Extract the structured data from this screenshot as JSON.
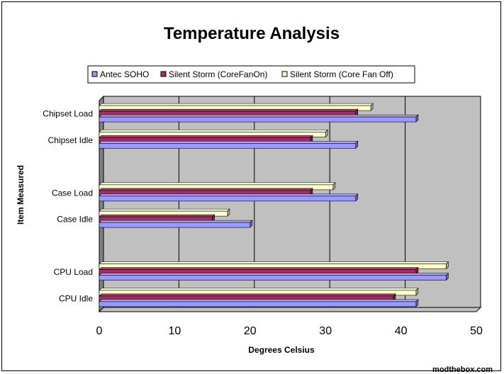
{
  "chart_data": {
    "type": "bar",
    "orientation": "horizontal",
    "title": "Temperature Analysis",
    "xlabel": "Degrees Celsius",
    "ylabel": "Item Measured",
    "xlim": [
      0,
      50
    ],
    "xticks": [
      0,
      10,
      20,
      30,
      40,
      50
    ],
    "categories": [
      "Chipset Load",
      "Chipset Idle",
      "",
      "Case Load",
      "Case Idle",
      "",
      "CPU Load",
      "CPU Idle"
    ],
    "series": [
      {
        "name": "Antec SOHO",
        "color": "#9999ff",
        "values": [
          42,
          34,
          null,
          34,
          20,
          null,
          46,
          42
        ]
      },
      {
        "name": "Silent Storm (CoreFanOn)",
        "color": "#993366",
        "values": [
          34,
          28,
          null,
          28,
          15,
          null,
          42,
          39
        ]
      },
      {
        "name": "Silent Storm (Core Fan Off)",
        "color": "#ffffcc",
        "values": [
          36,
          30,
          null,
          31,
          17,
          null,
          46,
          42
        ]
      }
    ],
    "legend_position": "top",
    "grid": true,
    "plot_background": "#c0c0c0"
  },
  "watermark": "modthebox.com"
}
